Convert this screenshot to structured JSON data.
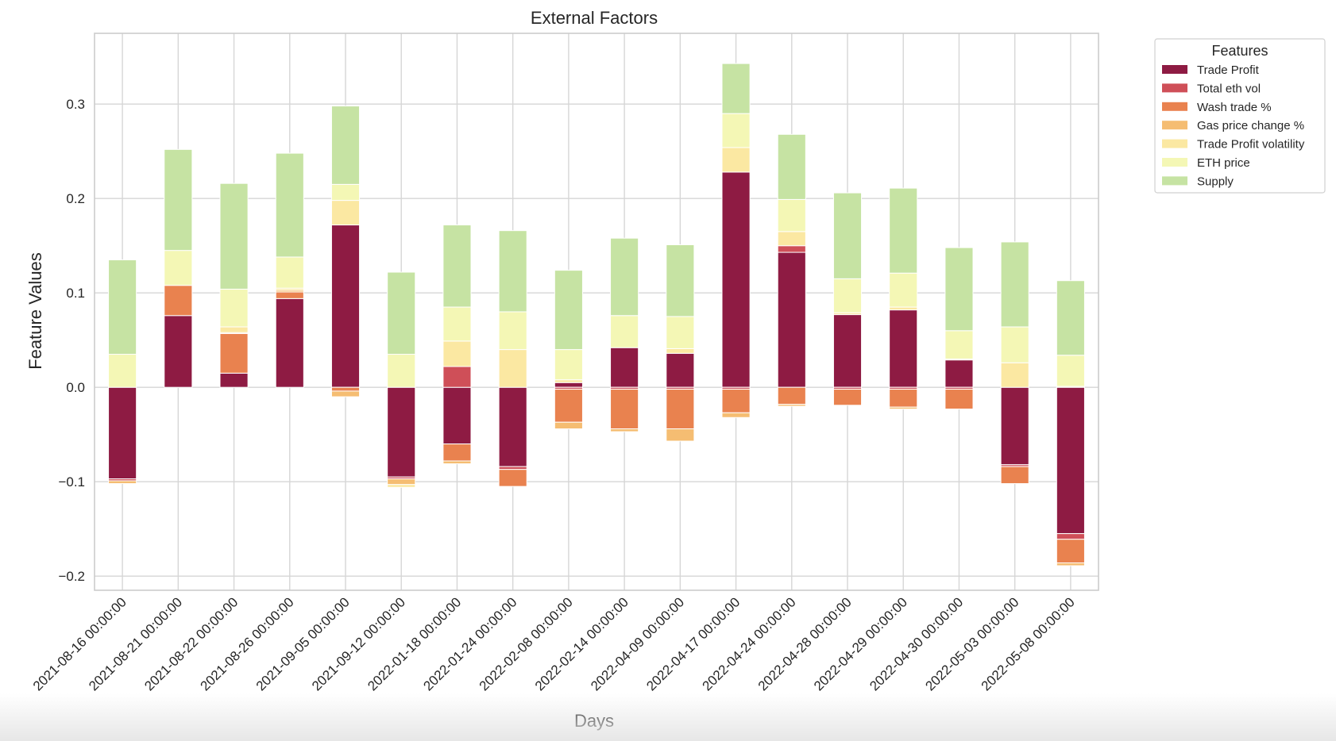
{
  "chart_data": {
    "type": "bar",
    "stacked": true,
    "title": "External Factors",
    "xlabel": "Days",
    "ylabel": "Feature Values",
    "ylim": [
      -0.215,
      0.375
    ],
    "yticks": [
      0.3,
      0.2,
      0.1,
      0.0,
      -0.1,
      -0.2
    ],
    "ytick_labels": [
      "0.3",
      "0.2",
      "0.1",
      "0.0",
      "−0.1",
      "−0.2"
    ],
    "grid": true,
    "legend": {
      "title": "Features",
      "position": "right"
    },
    "categories": [
      "2021-08-16 00:00:00",
      "2021-08-21 00:00:00",
      "2021-08-22 00:00:00",
      "2021-08-26 00:00:00",
      "2021-09-05 00:00:00",
      "2021-09-12 00:00:00",
      "2022-01-18 00:00:00",
      "2022-01-24 00:00:00",
      "2022-02-08 00:00:00",
      "2022-02-14 00:00:00",
      "2022-04-09 00:00:00",
      "2022-04-17 00:00:00",
      "2022-04-24 00:00:00",
      "2022-04-28 00:00:00",
      "2022-04-29 00:00:00",
      "2022-04-30 00:00:00",
      "2022-05-03 00:00:00",
      "2022-05-08 00:00:00"
    ],
    "series": [
      {
        "name": "Trade Profit",
        "color": "#8e1b43",
        "values": [
          -0.097,
          0.076,
          0.015,
          0.094,
          0.172,
          -0.095,
          -0.06,
          -0.084,
          0.005,
          0.042,
          0.036,
          0.228,
          0.143,
          0.077,
          0.082,
          0.029,
          -0.082,
          -0.155
        ]
      },
      {
        "name": "Total eth vol",
        "color": "#cf4f58",
        "values": [
          -0.002,
          0.0,
          0.0,
          0.0,
          0.0,
          -0.002,
          0.022,
          -0.003,
          -0.002,
          -0.002,
          -0.002,
          -0.002,
          0.007,
          -0.002,
          -0.002,
          -0.002,
          -0.002,
          -0.006
        ]
      },
      {
        "name": "Wash trade %",
        "color": "#e9824f",
        "values": [
          0.0,
          0.032,
          0.042,
          0.007,
          -0.004,
          0.0,
          -0.018,
          -0.018,
          -0.035,
          -0.042,
          -0.042,
          -0.025,
          -0.018,
          -0.017,
          -0.019,
          -0.021,
          -0.018,
          -0.025
        ]
      },
      {
        "name": "Gas price change %",
        "color": "#f5bd72",
        "values": [
          -0.003,
          0.0,
          0.001,
          0.002,
          -0.006,
          -0.006,
          -0.003,
          0.0,
          -0.007,
          -0.003,
          -0.013,
          -0.005,
          -0.002,
          0.0,
          -0.002,
          0.0,
          0.0,
          -0.003
        ]
      },
      {
        "name": "Trade Profit volatility",
        "color": "#fbe8a2",
        "values": [
          0.0,
          0.0,
          0.006,
          0.002,
          0.026,
          -0.003,
          0.027,
          0.04,
          0.003,
          0.0,
          0.005,
          0.026,
          0.015,
          0.002,
          0.003,
          0.001,
          0.026,
          0.001
        ]
      },
      {
        "name": "ETH price",
        "color": "#f4f7b5",
        "values": [
          0.035,
          0.037,
          0.04,
          0.033,
          0.017,
          0.035,
          0.036,
          0.04,
          0.032,
          0.034,
          0.034,
          0.036,
          0.034,
          0.036,
          0.036,
          0.03,
          0.038,
          0.033
        ]
      },
      {
        "name": "Supply",
        "color": "#c6e3a3",
        "values": [
          0.1,
          0.107,
          0.112,
          0.11,
          0.083,
          0.087,
          0.087,
          0.086,
          0.084,
          0.082,
          0.076,
          0.053,
          0.069,
          0.091,
          0.09,
          0.088,
          0.09,
          0.079
        ]
      }
    ]
  }
}
